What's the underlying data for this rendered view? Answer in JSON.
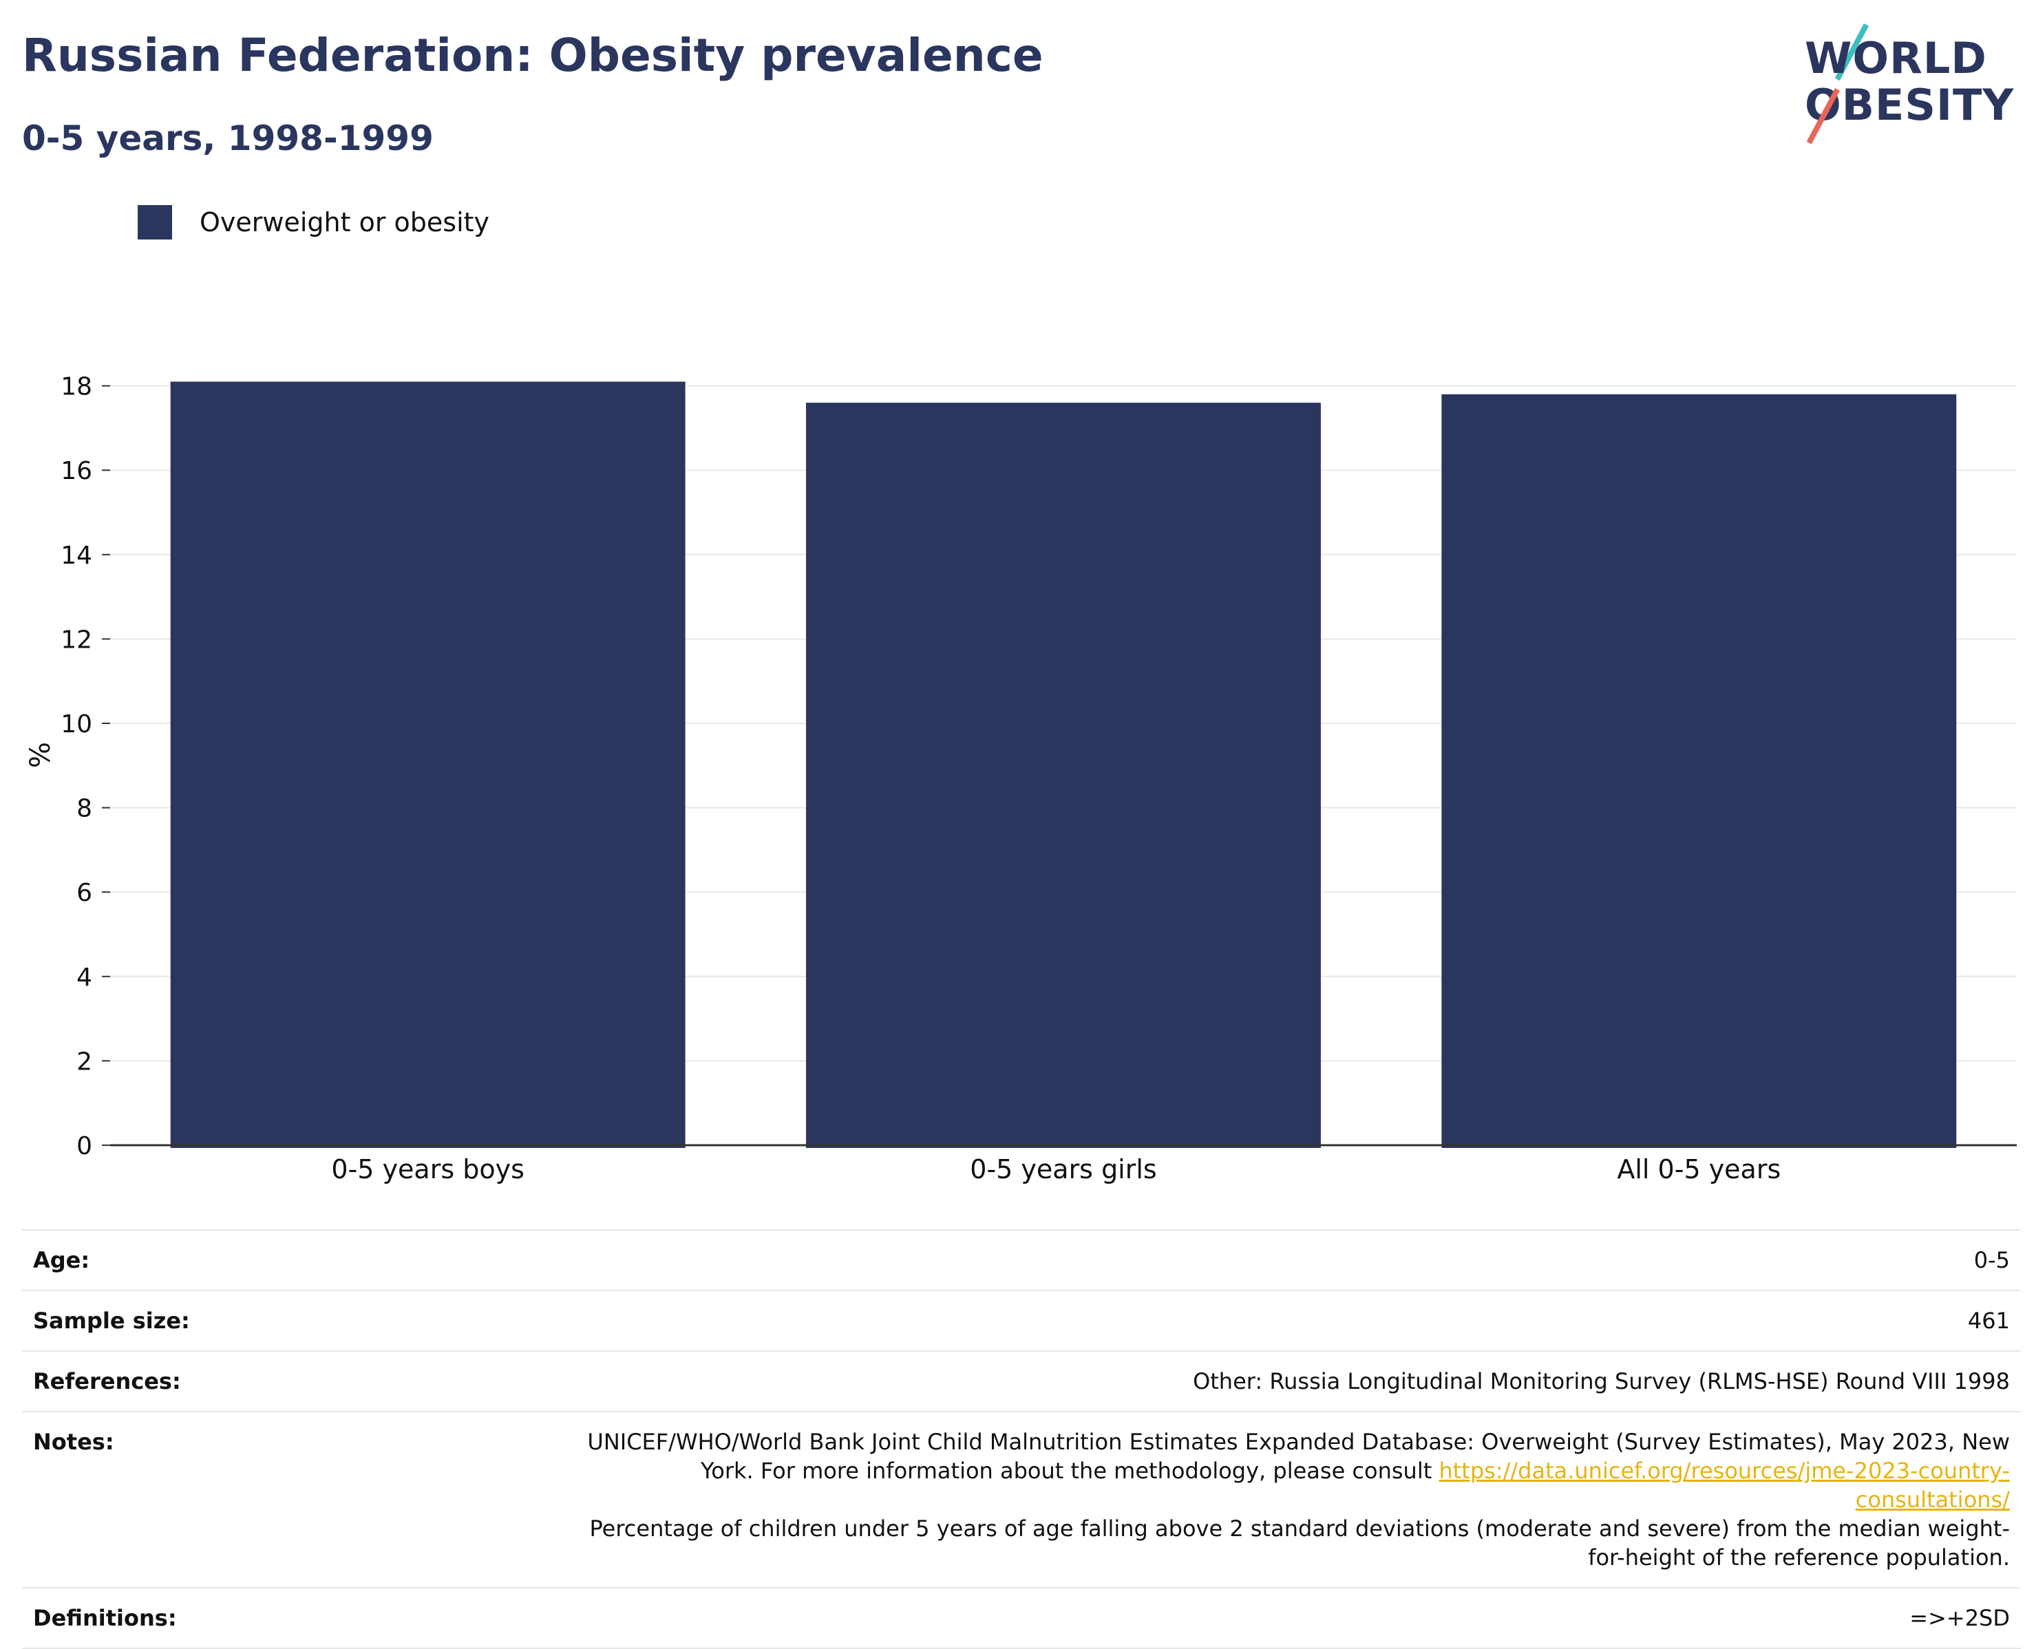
{
  "header": {
    "title": "Russian Federation: Obesity prevalence",
    "subtitle": "0-5 years, 1998-1999"
  },
  "logo": {
    "line1": "WORLD",
    "line2": "OBESITY",
    "colors": {
      "navy": "#2b365f",
      "teal": "#3cbfbf",
      "coral": "#e8675a"
    }
  },
  "chart_data": {
    "type": "bar",
    "categories": [
      "0-5 years boys",
      "0-5 years girls",
      "All 0-5 years"
    ],
    "series": [
      {
        "name": "Overweight or obesity",
        "color": "#2b365f",
        "values": [
          18.1,
          17.6,
          17.8
        ]
      }
    ],
    "ylabel": "%",
    "ylim": [
      0,
      18.5
    ],
    "yticks": [
      0,
      2,
      4,
      6,
      8,
      10,
      12,
      14,
      16,
      18
    ],
    "grid": true,
    "legend_position": "top-left"
  },
  "info": [
    {
      "label": "Age:",
      "value": "0-5"
    },
    {
      "label": "Sample size:",
      "value": "461"
    },
    {
      "label": "References:",
      "value": "Other: Russia Longitudinal Monitoring Survey (RLMS-HSE) Round VIII 1998"
    },
    {
      "label": "Notes:",
      "value_before": "UNICEF/WHO/World Bank Joint Child Malnutrition Estimates Expanded Database: Overweight (Survey Estimates), May 2023, New York. For more information about the methodology, please consult",
      "link": "https://data.unicef.org/resources/jme-2023-country-consultations/",
      "value_after": "Percentage of children under 5 years of age falling above 2 standard deviations (moderate and severe) from the median weight-for-height of the reference population."
    },
    {
      "label": "Definitions:",
      "value": "=>+2SD"
    }
  ]
}
